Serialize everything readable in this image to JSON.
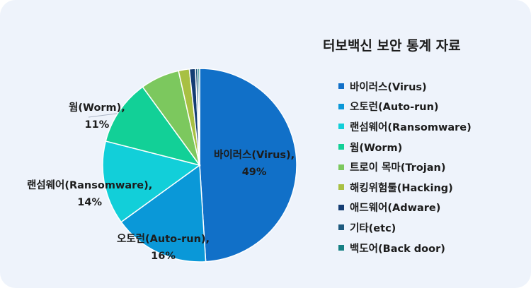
{
  "chart_data": {
    "type": "pie",
    "title": "터보백신 보안 통계 자료",
    "legend_position": "right",
    "slices": [
      {
        "name": "바이러스(Virus)",
        "value": 49,
        "color": "#1170c8",
        "label": "바이러스(Virus),",
        "pct_label": "49%"
      },
      {
        "name": "오토런(Auto-run)",
        "value": 16,
        "color": "#0a98d8",
        "label": "오토런(Auto-run),",
        "pct_label": "16%"
      },
      {
        "name": "랜섬웨어(Ransomware)",
        "value": 14,
        "color": "#12cfd9",
        "label": "랜섬웨어(Ransomware),",
        "pct_label": "14%"
      },
      {
        "name": "웜(Worm)",
        "value": 11,
        "color": "#12d097",
        "label": "웜(Worm),",
        "pct_label": "11%"
      },
      {
        "name": "트로이 목마(Trojan)",
        "value": 6.5,
        "color": "#7cc85e",
        "label": "",
        "pct_label": ""
      },
      {
        "name": "해킹위험툴(Hacking)",
        "value": 1.8,
        "color": "#a8c043",
        "label": "",
        "pct_label": ""
      },
      {
        "name": "애드웨어(Adware)",
        "value": 1.0,
        "color": "#143d73",
        "label": "",
        "pct_label": ""
      },
      {
        "name": "기타(etc)",
        "value": 0.4,
        "color": "#1e5a7e",
        "label": "",
        "pct_label": ""
      },
      {
        "name": "백도어(Back door)",
        "value": 0.3,
        "color": "#157f83",
        "label": "",
        "pct_label": ""
      }
    ]
  }
}
